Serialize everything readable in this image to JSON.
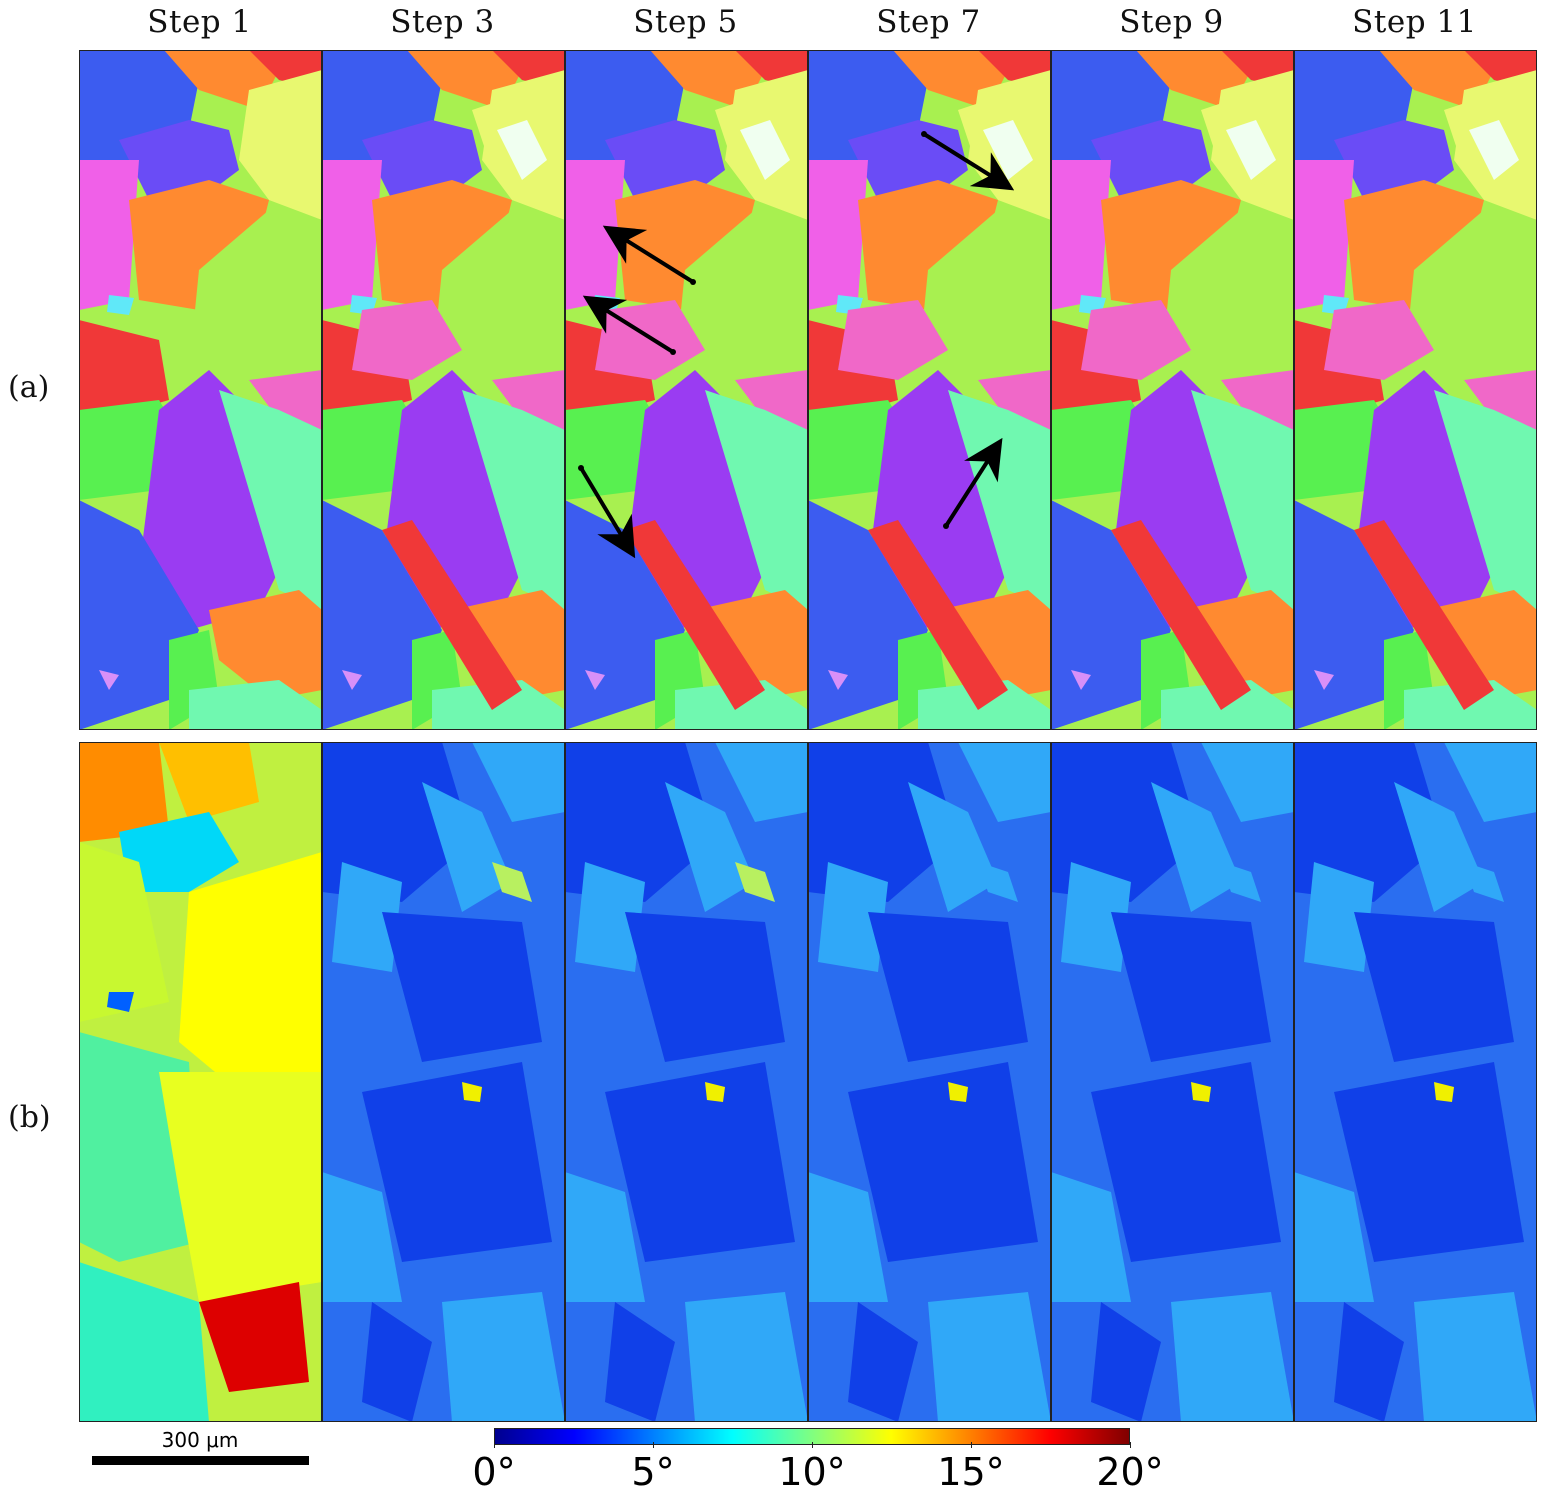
{
  "figure": {
    "steps": [
      "Step 1",
      "Step 3",
      "Step 5",
      "Step 7",
      "Step 9",
      "Step 11"
    ],
    "rows": [
      "(a)",
      "(b)"
    ],
    "scale_bar": "300 μm",
    "colorbar": {
      "ticks": [
        "0°",
        "5°",
        "10°",
        "15°",
        "20°"
      ],
      "colors": [
        "#00008f",
        "#0000ff",
        "#0080ff",
        "#00ffff",
        "#80ff80",
        "#ffff00",
        "#ff8000",
        "#ff0000",
        "#800000"
      ]
    },
    "palette": {
      "blue": "#3c5cf0",
      "violet": "#9a3cf2",
      "indigo": "#6a4cf6",
      "magenta": "#f060e8",
      "pink": "#f068c8",
      "red": "#f03838",
      "orange": "#ff8a30",
      "yellow": "#e8f870",
      "lime": "#a8f050",
      "green": "#58f050",
      "mint": "#70f8b0",
      "salmon": "#f87878",
      "cyan": "#60e8f8",
      "lavender": "#d890f8",
      "map_bg_b": "#2a6ef0",
      "map_dark_b": "#1040e8",
      "map_light_b": "#30a8f8"
    }
  }
}
